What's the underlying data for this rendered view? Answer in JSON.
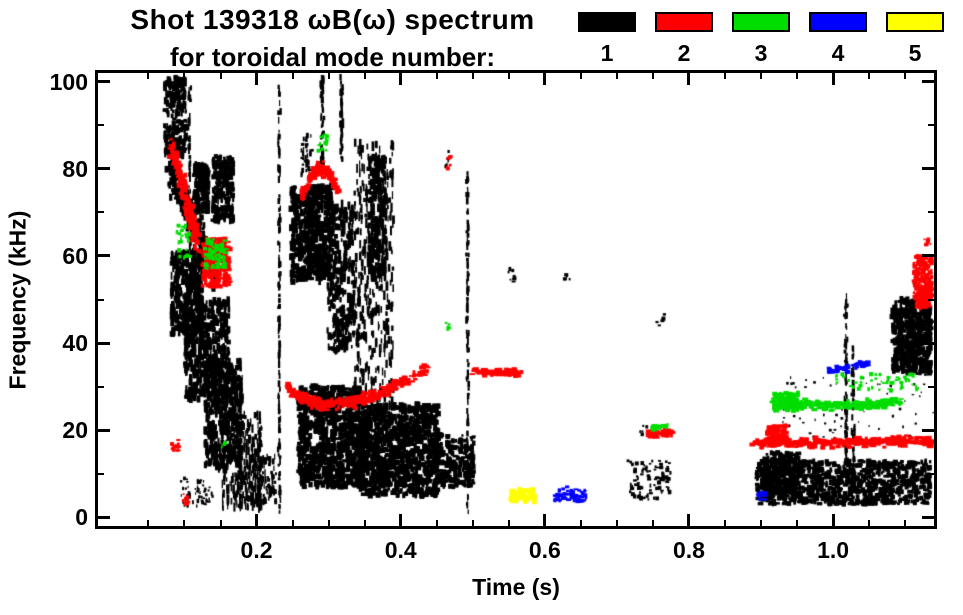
{
  "title": {
    "line1": "Shot 139318 ωB(ω) spectrum",
    "line2": "for toroidal mode number:"
  },
  "legend": {
    "items": [
      {
        "label": "1",
        "color": "#000000"
      },
      {
        "label": "2",
        "color": "#ff0000"
      },
      {
        "label": "3",
        "color": "#00dd00"
      },
      {
        "label": "4",
        "color": "#0000ff"
      },
      {
        "label": "5",
        "color": "#ffff00"
      }
    ]
  },
  "chart_data": {
    "type": "scatter",
    "title": "Shot 139318 ωB(ω) spectrum for toroidal mode number",
    "xlabel": "Time (s)",
    "ylabel": "Frequency (kHz)",
    "xlim": [
      -0.02,
      1.14
    ],
    "ylim": [
      -2,
      102
    ],
    "xticks": [
      0.2,
      0.4,
      0.6,
      0.8,
      1.0
    ],
    "xtick_labels": [
      "0.2",
      "0.4",
      "0.6",
      "0.8",
      "1.0"
    ],
    "yticks": [
      0,
      20,
      40,
      60,
      80,
      100
    ],
    "ytick_labels": [
      "0",
      "20",
      "40",
      "60",
      "80",
      "100"
    ],
    "grid": false,
    "legend_position": "top-right",
    "series": [
      {
        "name": "n=1",
        "color": "#000000",
        "clusters": [
          {
            "type": "box",
            "t": [
              0.072,
              0.103
            ],
            "f": [
              83,
              101
            ],
            "n": 260,
            "pw": 3,
            "ph": 5
          },
          {
            "type": "line",
            "p": [
              [
                0.078,
                80
              ],
              [
                0.145,
                56
              ]
            ],
            "n": 420,
            "jt": 0.006,
            "jf": 3.5,
            "pw": 3,
            "ph": 5
          },
          {
            "type": "box",
            "t": [
              0.113,
              0.134
            ],
            "f": [
              70,
              81
            ],
            "n": 200,
            "pw": 3,
            "ph": 5
          },
          {
            "type": "box",
            "t": [
              0.139,
              0.168
            ],
            "f": [
              68,
              83
            ],
            "n": 260,
            "pw": 3,
            "ph": 5
          },
          {
            "type": "line",
            "p": [
              [
                0.107,
                62
              ],
              [
                0.107,
                99
              ]
            ],
            "n": 45,
            "jt": 0.002,
            "jf": 2,
            "pw": 2,
            "ph": 6
          },
          {
            "type": "box",
            "t": [
              0.082,
              0.126
            ],
            "f": [
              42,
              61
            ],
            "n": 430,
            "pw": 3,
            "ph": 6
          },
          {
            "type": "box",
            "t": [
              0.1,
              0.162
            ],
            "f": [
              27,
              50
            ],
            "n": 480,
            "pw": 3,
            "ph": 6
          },
          {
            "type": "box",
            "t": [
              0.128,
              0.178
            ],
            "f": [
              11,
              36
            ],
            "n": 400,
            "pw": 3,
            "ph": 6
          },
          {
            "type": "box",
            "t": [
              0.152,
              0.205
            ],
            "f": [
              2,
              24
            ],
            "n": 260,
            "pw": 2,
            "ph": 7
          },
          {
            "type": "box",
            "t": [
              0.095,
              0.14
            ],
            "f": [
              2,
              9
            ],
            "n": 60,
            "pw": 2,
            "ph": 3
          },
          {
            "type": "line",
            "p": [
              [
                0.178,
                2
              ],
              [
                0.179,
                33
              ]
            ],
            "n": 70,
            "jt": 0.002,
            "jf": 1.5,
            "pw": 2,
            "ph": 6
          },
          {
            "type": "line",
            "p": [
              [
                0.205,
                2
              ],
              [
                0.206,
                20
              ]
            ],
            "n": 40,
            "jt": 0.002,
            "jf": 1.5,
            "pw": 2,
            "ph": 5
          },
          {
            "type": "box",
            "t": [
              0.195,
              0.228
            ],
            "f": [
              2,
              14
            ],
            "n": 90,
            "pw": 2,
            "ph": 5
          },
          {
            "type": "line",
            "p": [
              [
                0.2315,
                2
              ],
              [
                0.2315,
                100
              ]
            ],
            "n": 140,
            "jt": 0.0015,
            "jf": 2,
            "pw": 2,
            "ph": 5
          },
          {
            "type": "box",
            "t": [
              0.248,
              0.306
            ],
            "f": [
              54,
              76
            ],
            "n": 520,
            "pw": 4,
            "ph": 5
          },
          {
            "type": "box",
            "t": [
              0.262,
              0.278
            ],
            "f": [
              78,
              88
            ],
            "n": 40,
            "pw": 2,
            "ph": 4
          },
          {
            "type": "line",
            "p": [
              [
                0.291,
                80
              ],
              [
                0.291,
                101
              ]
            ],
            "n": 70,
            "jt": 0.002,
            "jf": 2,
            "pw": 2,
            "ph": 5
          },
          {
            "type": "line",
            "p": [
              [
                0.318,
                84
              ],
              [
                0.318,
                101
              ]
            ],
            "n": 60,
            "jt": 0.002,
            "jf": 2,
            "pw": 2,
            "ph": 5
          },
          {
            "type": "box",
            "t": [
              0.298,
              0.336
            ],
            "f": [
              38,
              72
            ],
            "n": 300,
            "pw": 3,
            "ph": 6
          },
          {
            "type": "box",
            "t": [
              0.335,
              0.39
            ],
            "f": [
              22,
              86
            ],
            "n": 430,
            "pw": 2,
            "ph": 7
          },
          {
            "type": "box",
            "t": [
              0.355,
              0.38
            ],
            "f": [
              55,
              83
            ],
            "n": 230,
            "pw": 3,
            "ph": 6
          },
          {
            "type": "box",
            "t": [
              0.258,
              0.35
            ],
            "f": [
              7,
              30
            ],
            "n": 850,
            "pw": 4,
            "ph": 5
          },
          {
            "type": "box",
            "t": [
              0.34,
              0.452
            ],
            "f": [
              5,
              26
            ],
            "n": 950,
            "pw": 4,
            "ph": 5
          },
          {
            "type": "box",
            "t": [
              0.445,
              0.502
            ],
            "f": [
              7,
              19
            ],
            "n": 240,
            "pw": 4,
            "ph": 4
          },
          {
            "type": "line",
            "p": [
              [
                0.493,
                2
              ],
              [
                0.493,
                79
              ]
            ],
            "n": 110,
            "jt": 0.0015,
            "jf": 2,
            "pw": 2,
            "ph": 5
          },
          {
            "type": "box",
            "t": [
              0.548,
              0.558
            ],
            "f": [
              54,
              57
            ],
            "n": 8,
            "pw": 3,
            "ph": 3
          },
          {
            "type": "box",
            "t": [
              0.625,
              0.636
            ],
            "f": [
              54,
              56
            ],
            "n": 5,
            "pw": 3,
            "ph": 3
          },
          {
            "type": "box",
            "t": [
              0.715,
              0.775
            ],
            "f": [
              4,
              13
            ],
            "n": 90,
            "pw": 3,
            "ph": 3
          },
          {
            "type": "box",
            "t": [
              0.755,
              0.766
            ],
            "f": [
              44,
              47
            ],
            "n": 6,
            "pw": 3,
            "ph": 3
          },
          {
            "type": "box",
            "t": [
              0.73,
              0.742
            ],
            "f": [
              19,
              21
            ],
            "n": 6,
            "pw": 3,
            "ph": 3
          },
          {
            "type": "box",
            "t": [
              0.893,
              1.135
            ],
            "f": [
              3,
              13
            ],
            "n": 950,
            "pw": 4,
            "ph": 4
          },
          {
            "type": "box",
            "t": [
              0.905,
              0.952
            ],
            "f": [
              5,
              15
            ],
            "n": 200,
            "pw": 4,
            "ph": 4
          },
          {
            "type": "line",
            "p": [
              [
                1.018,
                6
              ],
              [
                1.018,
                50
              ]
            ],
            "n": 90,
            "jt": 0.002,
            "jf": 2,
            "pw": 2,
            "ph": 5
          },
          {
            "type": "line",
            "p": [
              [
                1.028,
                6
              ],
              [
                1.028,
                40
              ]
            ],
            "n": 50,
            "jt": 0.002,
            "jf": 2,
            "pw": 2,
            "ph": 5
          },
          {
            "type": "box",
            "t": [
              1.082,
              1.136
            ],
            "f": [
              33,
              50
            ],
            "n": 400,
            "pw": 4,
            "ph": 5
          },
          {
            "type": "box",
            "t": [
              0.93,
              1.14
            ],
            "f": [
              18,
              33
            ],
            "n": 70,
            "pw": 2,
            "ph": 2
          },
          {
            "type": "box",
            "t": [
              0.462,
              0.47
            ],
            "f": [
              79,
              84
            ],
            "n": 8,
            "pw": 2,
            "ph": 3
          }
        ]
      },
      {
        "name": "n=2",
        "color": "#ff0000",
        "clusters": [
          {
            "type": "line",
            "p": [
              [
                0.082,
                86
              ],
              [
                0.118,
                63
              ]
            ],
            "n": 160,
            "jt": 0.004,
            "jf": 2.5,
            "pw": 4,
            "ph": 4
          },
          {
            "type": "box",
            "t": [
              0.125,
              0.163
            ],
            "f": [
              53,
              64
            ],
            "n": 200,
            "pw": 4,
            "ph": 4
          },
          {
            "type": "curve",
            "p": [
              [
                0.263,
                73
              ],
              [
                0.288,
                86
              ],
              [
                0.313,
                75
              ]
            ],
            "n": 130,
            "jt": 0.002,
            "jf": 1.5,
            "pw": 4,
            "ph": 4
          },
          {
            "type": "curve",
            "p": [
              [
                0.243,
                30
              ],
              [
                0.305,
                20
              ],
              [
                0.438,
                34.5
              ]
            ],
            "n": 300,
            "jt": 0.003,
            "jf": 1.3,
            "pw": 5,
            "ph": 3
          },
          {
            "type": "line",
            "p": [
              [
                0.502,
                33.5
              ],
              [
                0.565,
                33
              ]
            ],
            "n": 70,
            "jt": 0.004,
            "jf": 0.8,
            "pw": 5,
            "ph": 3
          },
          {
            "type": "line",
            "p": [
              [
                0.744,
                19
              ],
              [
                0.778,
                19.5
              ]
            ],
            "n": 40,
            "jt": 0.003,
            "jf": 0.8,
            "pw": 5,
            "ph": 3
          },
          {
            "type": "line",
            "p": [
              [
                0.893,
                17
              ],
              [
                1.135,
                17.5
              ]
            ],
            "n": 380,
            "jt": 0.004,
            "jf": 1.0,
            "pw": 5,
            "ph": 3
          },
          {
            "type": "box",
            "t": [
              0.908,
              0.936
            ],
            "f": [
              17.5,
              21
            ],
            "n": 90,
            "pw": 4,
            "ph": 4
          },
          {
            "type": "box",
            "t": [
              1.112,
              1.138
            ],
            "f": [
              48,
              60
            ],
            "n": 170,
            "pw": 4,
            "ph": 4
          },
          {
            "type": "box",
            "t": [
              1.126,
              1.136
            ],
            "f": [
              62,
              64
            ],
            "n": 8,
            "pw": 3,
            "ph": 3
          },
          {
            "type": "box",
            "t": [
              0.082,
              0.093
            ],
            "f": [
              14,
              18
            ],
            "n": 15,
            "pw": 3,
            "ph": 3
          },
          {
            "type": "box",
            "t": [
              0.098,
              0.108
            ],
            "f": [
              3,
              6
            ],
            "n": 10,
            "pw": 3,
            "ph": 3
          },
          {
            "type": "box",
            "t": [
              0.462,
              0.47
            ],
            "f": [
              80,
              83
            ],
            "n": 10,
            "pw": 3,
            "ph": 3
          }
        ]
      },
      {
        "name": "n=3",
        "color": "#00dd00",
        "clusters": [
          {
            "type": "box",
            "t": [
              0.089,
              0.108
            ],
            "f": [
              59,
              67
            ],
            "n": 30,
            "pw": 3,
            "ph": 3
          },
          {
            "type": "box",
            "t": [
              0.128,
              0.158
            ],
            "f": [
              57,
              64
            ],
            "n": 70,
            "pw": 4,
            "ph": 3
          },
          {
            "type": "box",
            "t": [
              0.284,
              0.3
            ],
            "f": [
              84,
              88
            ],
            "n": 18,
            "pw": 3,
            "ph": 3
          },
          {
            "type": "line",
            "p": [
              [
                0.748,
                20.5
              ],
              [
                0.772,
                21
              ]
            ],
            "n": 20,
            "jt": 0.003,
            "jf": 0.6,
            "pw": 4,
            "ph": 3
          },
          {
            "type": "curve",
            "p": [
              [
                0.915,
                26.5
              ],
              [
                1.0,
                24.8
              ],
              [
                1.095,
                26.5
              ]
            ],
            "n": 240,
            "jt": 0.004,
            "jf": 1.0,
            "pw": 5,
            "ph": 3
          },
          {
            "type": "box",
            "t": [
              0.918,
              0.952
            ],
            "f": [
              24.5,
              28.5
            ],
            "n": 90,
            "pw": 4,
            "ph": 4
          },
          {
            "type": "box",
            "t": [
              1.0,
              1.125
            ],
            "f": [
              29,
              33
            ],
            "n": 50,
            "pw": 3,
            "ph": 3
          },
          {
            "type": "box",
            "t": [
              0.462,
              0.468
            ],
            "f": [
              43,
              45
            ],
            "n": 5,
            "pw": 3,
            "ph": 3
          },
          {
            "type": "box",
            "t": [
              0.15,
              0.158
            ],
            "f": [
              16,
              18
            ],
            "n": 6,
            "pw": 3,
            "ph": 3
          }
        ]
      },
      {
        "name": "n=4",
        "color": "#0000ff",
        "clusters": [
          {
            "type": "box",
            "t": [
              0.613,
              0.657
            ],
            "f": [
              3.5,
              7
            ],
            "n": 50,
            "pw": 4,
            "ph": 3
          },
          {
            "type": "box",
            "t": [
              0.896,
              0.906
            ],
            "f": [
              4,
              6
            ],
            "n": 10,
            "pw": 4,
            "ph": 3
          },
          {
            "type": "line",
            "p": [
              [
                0.993,
                33.5
              ],
              [
                1.052,
                35.5
              ]
            ],
            "n": 50,
            "jt": 0.003,
            "jf": 0.8,
            "pw": 4,
            "ph": 3
          }
        ]
      },
      {
        "name": "n=5",
        "color": "#ffff00",
        "clusters": [
          {
            "type": "box",
            "t": [
              0.553,
              0.586
            ],
            "f": [
              3.5,
              6.5
            ],
            "n": 70,
            "pw": 4,
            "ph": 4
          }
        ]
      }
    ]
  }
}
